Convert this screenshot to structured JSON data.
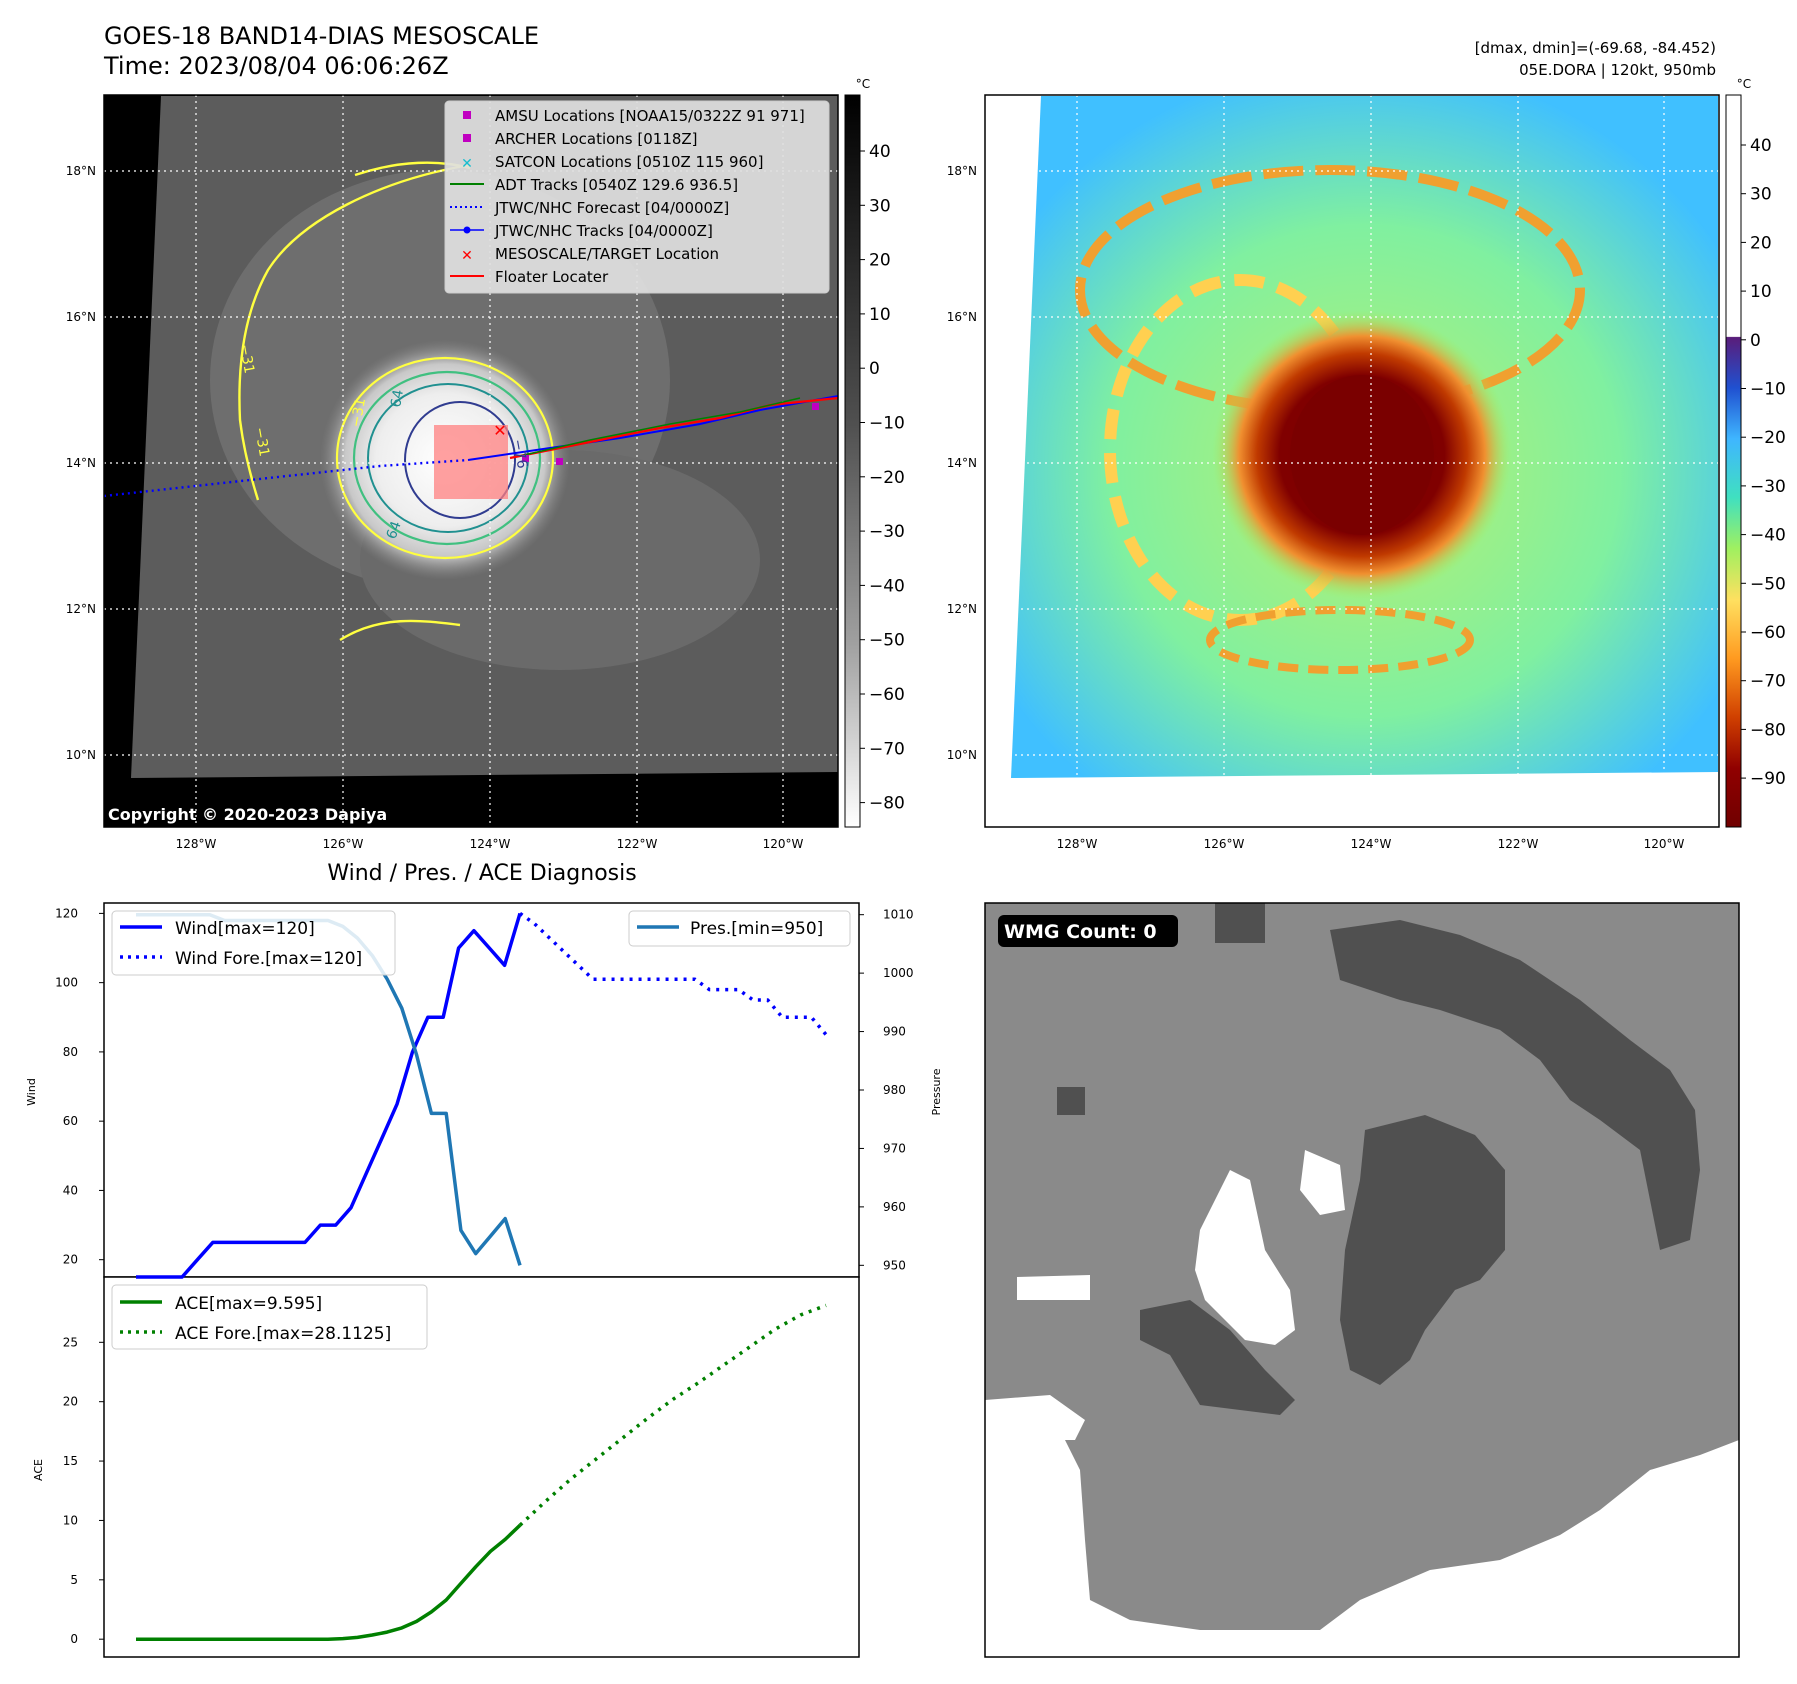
{
  "header": {
    "title_line1": "GOES-18 BAND14-DIAS MESOSCALE",
    "title_line2": "Time: 2023/08/04 06:06:26Z",
    "right_line1": "[dmax, dmin]=(-69.68, -84.452)",
    "right_line2": "05E.DORA | 120kt, 950mb"
  },
  "panel_ir": {
    "copyright": "Copyright © 2020-2023 Dapiya",
    "lat_ticks": [
      "18°N",
      "16°N",
      "14°N",
      "12°N",
      "10°N"
    ],
    "lon_ticks": [
      "128°W",
      "126°W",
      "124°W",
      "122°W",
      "120°W"
    ],
    "colorbar_unit": "°C",
    "colorbar_ticks": [
      "40",
      "30",
      "20",
      "10",
      "0",
      "−10",
      "−20",
      "−30",
      "−40",
      "−50",
      "−60",
      "−70",
      "−80"
    ],
    "contour_labels": [
      "−31",
      "−31",
      "64",
      "−76",
      "64",
      "−31"
    ],
    "legend": [
      {
        "label": "AMSU Locations [NOAA15/0322Z 91 971]",
        "color": "#c000c0",
        "marker": "square"
      },
      {
        "label": "ARCHER Locations [0118Z]",
        "color": "#c000c0",
        "marker": "square"
      },
      {
        "label": "SATCON Locations [0510Z 115 960]",
        "color": "#17becf",
        "marker": "x"
      },
      {
        "label": "ADT Tracks [0540Z 129.6 936.5]",
        "color": "#008000",
        "marker": "line"
      },
      {
        "label": "JTWC/NHC Forecast [04/0000Z]",
        "color": "#0000ff",
        "marker": "dotted"
      },
      {
        "label": "JTWC/NHC Tracks [04/0000Z]",
        "color": "#0000ff",
        "marker": "line-dot"
      },
      {
        "label": "MESOSCALE/TARGET Location",
        "color": "#ff0000",
        "marker": "x"
      },
      {
        "label": "Floater Locater",
        "color": "#ff0000",
        "marker": "line"
      }
    ]
  },
  "panel_color": {
    "lat_ticks": [
      "18°N",
      "16°N",
      "14°N",
      "12°N",
      "10°N"
    ],
    "lon_ticks": [
      "128°W",
      "126°W",
      "124°W",
      "122°W",
      "120°W"
    ],
    "colorbar_unit": "°C",
    "colorbar_ticks": [
      "40",
      "30",
      "20",
      "10",
      "0",
      "−10",
      "−20",
      "−30",
      "−40",
      "−50",
      "−60",
      "−70",
      "−80",
      "−90"
    ]
  },
  "panel_wmg": {
    "badge": "WMG Count: 0"
  },
  "chart_data": [
    {
      "type": "line",
      "title": "Wind / Pres. / ACE Diagnosis",
      "ylabel": "Wind",
      "ylim": [
        15,
        123
      ],
      "yticks": [
        "120",
        "100",
        "80",
        "60",
        "40",
        "20"
      ],
      "series": [
        {
          "name": "Wind[max=120]",
          "color": "#0000ff",
          "style": "solid",
          "values": [
            15,
            15,
            15,
            15,
            20,
            25,
            25,
            25,
            25,
            25,
            25,
            25,
            30,
            30,
            35,
            45,
            55,
            65,
            80,
            90,
            90,
            110,
            115,
            110,
            105,
            120
          ]
        },
        {
          "name": "Wind Fore.[max=120]",
          "color": "#0000ff",
          "style": "dotted",
          "values": [
            120,
            117,
            113,
            109,
            105,
            101,
            101,
            101,
            101,
            101,
            101,
            101,
            101,
            98,
            98,
            98,
            95,
            95,
            90,
            90,
            90,
            85
          ]
        }
      ]
    },
    {
      "type": "line",
      "ylabel": "Pressure",
      "ylim": [
        948,
        1012
      ],
      "yticks": [
        "1010",
        "1000",
        "990",
        "980",
        "970",
        "960",
        "950"
      ],
      "series": [
        {
          "name": "Pres.[min=950]",
          "color": "#1f77b4",
          "style": "solid",
          "values": [
            1010,
            1010,
            1010,
            1010,
            1010,
            1010,
            1009,
            1009,
            1009,
            1009,
            1009,
            1009,
            1009,
            1009,
            1008,
            1006,
            1003,
            999,
            994,
            986,
            976,
            976,
            956,
            952,
            955,
            958,
            950
          ]
        }
      ]
    },
    {
      "type": "line",
      "ylabel": "ACE",
      "ylim": [
        -1.5,
        30.5
      ],
      "yticks": [
        "25",
        "20",
        "15",
        "10",
        "5",
        "0"
      ],
      "series": [
        {
          "name": "ACE[max=9.595]",
          "color": "#008000",
          "style": "solid",
          "values": [
            0,
            0,
            0,
            0,
            0,
            0,
            0,
            0,
            0,
            0,
            0,
            0,
            0,
            0,
            0.05,
            0.15,
            0.35,
            0.6,
            0.95,
            1.5,
            2.3,
            3.3,
            4.7,
            6.1,
            7.4,
            8.4,
            9.595
          ]
        },
        {
          "name": "ACE Fore.[max=28.1125]",
          "color": "#008000",
          "style": "dotted",
          "values": [
            9.595,
            11.6,
            13.5,
            15.2,
            16.9,
            18.6,
            20.2,
            21.6,
            23.1,
            24.6,
            26.1,
            27.3,
            28.1125
          ]
        }
      ]
    }
  ]
}
